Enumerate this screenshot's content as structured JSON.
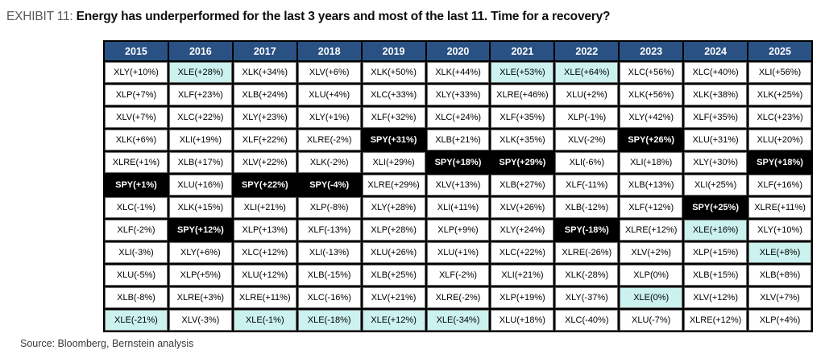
{
  "exhibit": {
    "label": "EXHIBIT 11:",
    "title": "Energy has underperformed for the last 3 years and most of the last 11. Time for a recovery?"
  },
  "source_note": "Source: Bloomberg, Bernstein analysis",
  "colors": {
    "header_blue": "#2a5183",
    "spy_black": "#000000",
    "energy_cyan": "#cbf2ee",
    "grid_black": "#000000",
    "exhibit_label_gray": "#58595b"
  },
  "chart_data": {
    "type": "table",
    "title": "Energy has underperformed for the last 3 years and most of the last 11. Time for a recovery?",
    "description": "Annual sector ETF total returns ranked best (top) to worst (bottom) per year. SPY cells shown black with white text; XLE (Energy) cells shown light cyan.",
    "columns": [
      "2015",
      "2016",
      "2017",
      "2018",
      "2019",
      "2020",
      "2021",
      "2022",
      "2023",
      "2024",
      "2025"
    ],
    "rows": [
      [
        "XLY(+10%)",
        "XLE(+28%)",
        "XLK(+34%)",
        "XLV(+6%)",
        "XLK(+50%)",
        "XLK(+44%)",
        "XLE(+53%)",
        "XLE(+64%)",
        "XLC(+56%)",
        "XLC(+40%)",
        "XLI(+56%)"
      ],
      [
        "XLP(+7%)",
        "XLF(+23%)",
        "XLB(+24%)",
        "XLU(+4%)",
        "XLC(+33%)",
        "XLY(+33%)",
        "XLRE(+46%)",
        "XLU(+2%)",
        "XLK(+56%)",
        "XLK(+38%)",
        "XLK(+25%)"
      ],
      [
        "XLV(+7%)",
        "XLC(+22%)",
        "XLY(+23%)",
        "XLY(+1%)",
        "XLF(+32%)",
        "XLC(+24%)",
        "XLF(+35%)",
        "XLP(-1%)",
        "XLY(+42%)",
        "XLF(+35%)",
        "XLC(+23%)"
      ],
      [
        "XLK(+6%)",
        "XLI(+19%)",
        "XLF(+22%)",
        "XLRE(-2%)",
        "SPY(+31%)",
        "XLB(+21%)",
        "XLK(+35%)",
        "XLV(-2%)",
        "SPY(+26%)",
        "XLU(+31%)",
        "XLU(+20%)"
      ],
      [
        "XLRE(+1%)",
        "XLB(+17%)",
        "XLV(+22%)",
        "XLK(-2%)",
        "XLI(+29%)",
        "SPY(+18%)",
        "SPY(+29%)",
        "XLI(-6%)",
        "XLI(+18%)",
        "XLY(+30%)",
        "SPY(+18%)"
      ],
      [
        "SPY(+1%)",
        "XLU(+16%)",
        "SPY(+22%)",
        "SPY(-4%)",
        "XLRE(+29%)",
        "XLV(+13%)",
        "XLB(+27%)",
        "XLF(-11%)",
        "XLB(+13%)",
        "XLI(+25%)",
        "XLF(+16%)"
      ],
      [
        "XLC(-1%)",
        "XLK(+15%)",
        "XLI(+21%)",
        "XLP(-8%)",
        "XLY(+28%)",
        "XLI(+11%)",
        "XLV(+26%)",
        "XLB(-12%)",
        "XLF(+12%)",
        "SPY(+25%)",
        "XLRE(+11%)"
      ],
      [
        "XLF(-2%)",
        "SPY(+12%)",
        "XLP(+13%)",
        "XLF(-13%)",
        "XLP(+28%)",
        "XLP(+9%)",
        "XLY(+24%)",
        "SPY(-18%)",
        "XLRE(+12%)",
        "XLE(+16%)",
        "XLY(+10%)"
      ],
      [
        "XLI(-3%)",
        "XLY(+6%)",
        "XLC(+12%)",
        "XLI(-13%)",
        "XLU(+26%)",
        "XLU(+1%)",
        "XLC(+22%)",
        "XLRE(-26%)",
        "XLV(+2%)",
        "XLP(+15%)",
        "XLE(+8%)"
      ],
      [
        "XLU(-5%)",
        "XLP(+5%)",
        "XLU(+12%)",
        "XLB(-15%)",
        "XLB(+25%)",
        "XLF(-2%)",
        "XLI(+21%)",
        "XLK(-28%)",
        "XLP(0%)",
        "XLB(+15%)",
        "XLB(+8%)"
      ],
      [
        "XLB(-8%)",
        "XLRE(+3%)",
        "XLRE(+11%)",
        "XLC(-16%)",
        "XLV(+21%)",
        "XLRE(-2%)",
        "XLP(+19%)",
        "XLY(-37%)",
        "XLE(0%)",
        "XLV(+12%)",
        "XLV(+7%)"
      ],
      [
        "XLE(-21%)",
        "XLV(-3%)",
        "XLE(-1%)",
        "XLE(-18%)",
        "XLE(+12%)",
        "XLE(-34%)",
        "XLU(+18%)",
        "XLC(-40%)",
        "XLU(-7%)",
        "XLRE(+12%)",
        "XLP(+4%)"
      ]
    ],
    "highlight_rules": [
      {
        "ticker": "SPY",
        "style": "black background, white bold text"
      },
      {
        "ticker": "XLE",
        "style": "light cyan background"
      }
    ],
    "layout": {
      "ranking": "descending returns top to bottom within each year column",
      "grid": "black gridlines",
      "legend": "none"
    }
  }
}
